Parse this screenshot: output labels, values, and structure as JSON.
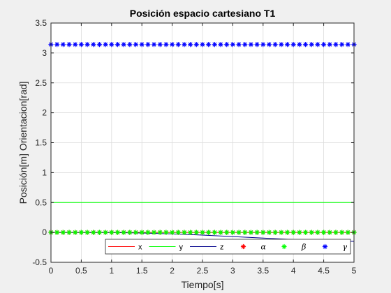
{
  "chart_data": {
    "type": "line",
    "title": "Posición espacio cartesiano T1",
    "xlabel": "Tiempo[s]",
    "ylabel": "Posición[m] Orientacion[rad]",
    "xlim": [
      0,
      5
    ],
    "ylim": [
      -0.5,
      3.5
    ],
    "xticks": [
      0,
      0.5,
      1,
      1.5,
      2,
      2.5,
      3,
      3.5,
      4,
      4.5,
      5
    ],
    "yticks": [
      -0.5,
      0,
      0.5,
      1,
      1.5,
      2,
      2.5,
      3,
      3.5
    ],
    "xtick_labels": [
      "0",
      "0.5",
      "1",
      "1.5",
      "2",
      "2.5",
      "3",
      "3.5",
      "4",
      "4.5",
      "5"
    ],
    "ytick_labels": [
      "-0.5",
      "0",
      "0.5",
      "1",
      "1.5",
      "2",
      "2.5",
      "3",
      "3.5"
    ],
    "grid": true,
    "legend_placement": "bottom-right",
    "series": [
      {
        "name": "x",
        "style": "line",
        "color": "#ff0000",
        "x": [
          0,
          5
        ],
        "y": [
          0,
          0
        ]
      },
      {
        "name": "y",
        "style": "line",
        "color": "#00ff00",
        "x": [
          0,
          5
        ],
        "y": [
          0.5,
          0.5
        ]
      },
      {
        "name": "z",
        "style": "line",
        "color": "#00008b",
        "x": [
          0,
          1,
          1.5,
          2,
          2.5,
          3,
          3.5,
          4,
          4.5,
          5
        ],
        "y": [
          0,
          -0.002,
          -0.01,
          -0.025,
          -0.045,
          -0.07,
          -0.095,
          -0.12,
          -0.14,
          -0.15
        ]
      },
      {
        "name": "α",
        "style": "marker",
        "color": "#ff0000",
        "x_start": 0,
        "x_end": 5,
        "count": 51,
        "y": 0
      },
      {
        "name": "β",
        "style": "marker",
        "color": "#00ff00",
        "x_start": 0,
        "x_end": 5,
        "count": 51,
        "y": 0
      },
      {
        "name": "γ",
        "style": "marker",
        "color": "#0000ff",
        "x_start": 0,
        "x_end": 5,
        "count": 51,
        "y": 3.1416
      }
    ]
  }
}
